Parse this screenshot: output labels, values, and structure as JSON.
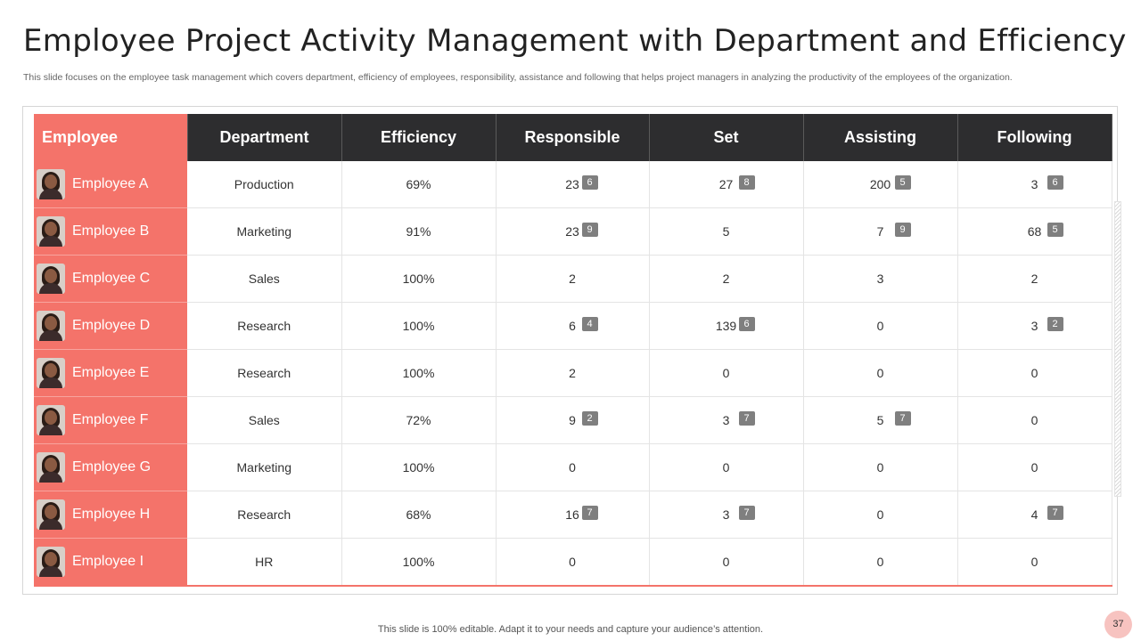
{
  "slide": {
    "title": "Employee Project Activity Management with Department and Efficiency",
    "subtitle": "This slide focuses on the employee task management which covers department, efficiency of employees, responsibility, assistance and following that helps project managers in analyzing the productivity of the employees of the organization.",
    "footer": "This slide is 100% editable. Adapt it to your needs and capture your audience’s attention.",
    "page_number": "37"
  },
  "table": {
    "headers": [
      "Employee",
      "Department",
      "Efficiency",
      "Responsible",
      "Set",
      "Assisting",
      "Following"
    ],
    "rows": [
      {
        "employee": "Employee A",
        "department": "Production",
        "efficiency": "69%",
        "responsible": "23",
        "responsible_badge": "6",
        "set": "27",
        "set_badge": "8",
        "assisting": "200",
        "assisting_badge": "5",
        "following": "3",
        "following_badge": "6"
      },
      {
        "employee": "Employee B",
        "department": "Marketing",
        "efficiency": "91%",
        "responsible": "23",
        "responsible_badge": "9",
        "set": "5",
        "set_badge": "",
        "assisting": "7",
        "assisting_badge": "9",
        "following": "68",
        "following_badge": "5"
      },
      {
        "employee": "Employee C",
        "department": "Sales",
        "efficiency": "100%",
        "responsible": "2",
        "responsible_badge": "",
        "set": "2",
        "set_badge": "",
        "assisting": "3",
        "assisting_badge": "",
        "following": "2",
        "following_badge": ""
      },
      {
        "employee": "Employee D",
        "department": "Research",
        "efficiency": "100%",
        "responsible": "6",
        "responsible_badge": "4",
        "set": "139",
        "set_badge": "6",
        "assisting": "0",
        "assisting_badge": "",
        "following": "3",
        "following_badge": "2"
      },
      {
        "employee": "Employee E",
        "department": "Research",
        "efficiency": "100%",
        "responsible": "2",
        "responsible_badge": "",
        "set": "0",
        "set_badge": "",
        "assisting": "0",
        "assisting_badge": "",
        "following": "0",
        "following_badge": ""
      },
      {
        "employee": "Employee F",
        "department": "Sales",
        "efficiency": "72%",
        "responsible": "9",
        "responsible_badge": "2",
        "set": "3",
        "set_badge": "7",
        "assisting": "5",
        "assisting_badge": "7",
        "following": "0",
        "following_badge": ""
      },
      {
        "employee": "Employee G",
        "department": "Marketing",
        "efficiency": "100%",
        "responsible": "0",
        "responsible_badge": "",
        "set": "0",
        "set_badge": "",
        "assisting": "0",
        "assisting_badge": "",
        "following": "0",
        "following_badge": ""
      },
      {
        "employee": "Employee H",
        "department": "Research",
        "efficiency": "68%",
        "responsible": "16",
        "responsible_badge": "7",
        "set": "3",
        "set_badge": "7",
        "assisting": "0",
        "assisting_badge": "",
        "following": "4",
        "following_badge": "7"
      },
      {
        "employee": "Employee I",
        "department": "HR",
        "efficiency": "100%",
        "responsible": "0",
        "responsible_badge": "",
        "set": "0",
        "set_badge": "",
        "assisting": "0",
        "assisting_badge": "",
        "following": "0",
        "following_badge": ""
      }
    ]
  },
  "colors": {
    "accent": "#f4736a",
    "header_dark": "#2d2d2f",
    "badge": "#7f7f7f"
  },
  "icons": {
    "avatar": "employee-photo-icon"
  }
}
